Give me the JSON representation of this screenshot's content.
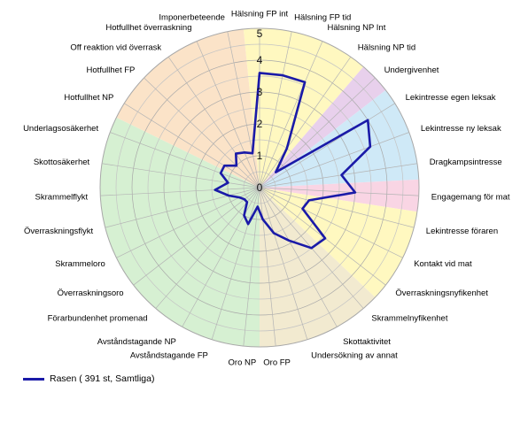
{
  "chart_data": {
    "type": "radar",
    "rmax": 5,
    "ticks": [
      0,
      1,
      2,
      3,
      4,
      5
    ],
    "grid": true,
    "categories": [
      "Hälsning FP int",
      "Hälsning FP tid",
      "Hälsning NP Int",
      "Hälsning NP tid",
      "Undergivenhet",
      "Lekintresse egen leksak",
      "Lekintresse ny leksak",
      "Dragkampsintresse",
      "Engagemang för mat",
      "Lekintresse föraren",
      "Kontakt vid mat",
      "Överraskningsnyfikenhet",
      "Skrammelnyfikenhet",
      "Skottaktivitet",
      "Undersökning av annat",
      "Oro FP",
      "Oro NP",
      "Avståndstagande FP",
      "Avståndstagande NP",
      "Förarbundenhet promenad",
      "Överraskningsoro",
      "Skrammeloro",
      "Överraskningsflykt",
      "Skrammelflykt",
      "Skottosäkerhet",
      "Underlagsosäkerhet",
      "Hotfullhet NP",
      "Hotfullhet FP",
      "Off reaktion vid överrask",
      "Hotfullhet överraskning",
      "Imponerbeteende"
    ],
    "series": [
      {
        "name": "Rasen ( 391 st, Samtliga)",
        "color": "#1a1aa8",
        "values": [
          3.6,
          3.6,
          3.6,
          1.5,
          0.7,
          4.0,
          3.7,
          2.6,
          3.0,
          1.6,
          1.5,
          2.6,
          2.5,
          1.9,
          1.5,
          1.0,
          0.6,
          1.2,
          1.0,
          0.6,
          0.6,
          0.7,
          1.0,
          1.4,
          1.0,
          1.3,
          1.3,
          1.0,
          1.3,
          1.2,
          1.1
        ]
      }
    ],
    "sectors": [
      {
        "from": 0,
        "to": 4,
        "color": "#fff8c0"
      },
      {
        "from": 4,
        "to": 5,
        "color": "#e8d0ec"
      },
      {
        "from": 5,
        "to": 8,
        "color": "#cfe9f7"
      },
      {
        "from": 8,
        "to": 9,
        "color": "#f9d5e4"
      },
      {
        "from": 9,
        "to": 12,
        "color": "#fff8c0"
      },
      {
        "from": 12,
        "to": 16,
        "color": "#f2ead0"
      },
      {
        "from": 16,
        "to": 26,
        "color": "#d6f0d2"
      },
      {
        "from": 26,
        "to": 31,
        "color": "#fbe3c8"
      }
    ],
    "legend_position": "bottom-left"
  }
}
